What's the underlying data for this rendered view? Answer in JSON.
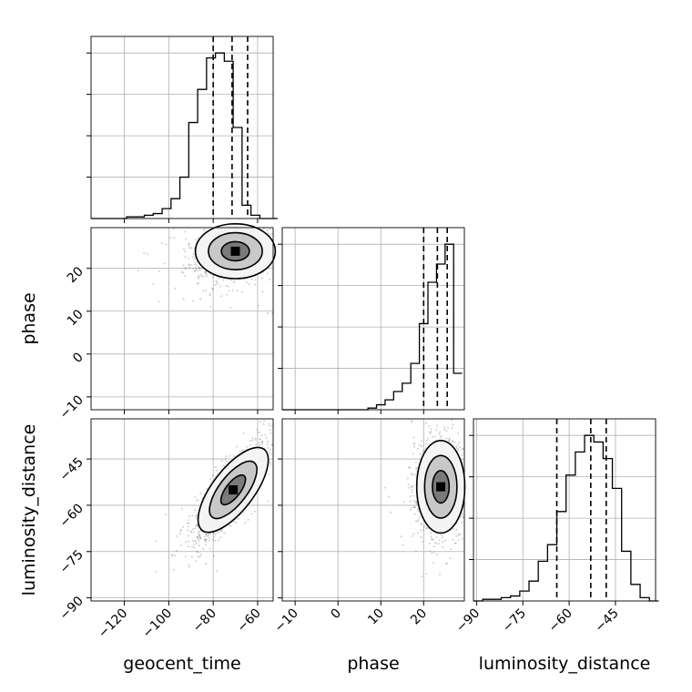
{
  "chart_data": {
    "type": "corner",
    "parameters": [
      "geocent_time",
      "phase",
      "luminosity_distance"
    ],
    "grid": true,
    "axis_ranges": {
      "geocent_time": [
        -135,
        -53
      ],
      "phase": [
        -13,
        29.5
      ],
      "luminosity_distance": [
        -91,
        -32
      ]
    },
    "ticks": {
      "geocent_time": [
        -120,
        -100,
        -80,
        -60
      ],
      "phase": [
        -10,
        0,
        10,
        20
      ],
      "luminosity_distance": [
        -90,
        -75,
        -60,
        -45
      ]
    },
    "tick_labels": {
      "geocent_time": [
        "−120",
        "−100",
        "−80",
        "−60"
      ],
      "phase": [
        "−10",
        "0",
        "10",
        "20"
      ],
      "luminosity_distance": [
        "−90",
        "−75",
        "−60",
        "−45"
      ]
    },
    "quantile_lines": {
      "geocent_time": [
        -80,
        -71.5,
        -64.5
      ],
      "phase": [
        20,
        23.2,
        25.5
      ],
      "luminosity_distance": [
        -64,
        -53,
        -48
      ]
    },
    "histograms": {
      "geocent_time": {
        "bin_edges": [
          -135,
          -131,
          -127,
          -123,
          -119,
          -115,
          -111,
          -107,
          -103,
          -99,
          -95,
          -91,
          -87,
          -83,
          -79,
          -75,
          -71,
          -67,
          -63,
          -59,
          -55,
          -51
        ],
        "counts": [
          0,
          0,
          0,
          0,
          0.01,
          0.01,
          0.02,
          0.03,
          0.06,
          0.12,
          0.25,
          0.58,
          0.78,
          0.97,
          1.0,
          0.95,
          0.55,
          0.08,
          0.02,
          0.0,
          0.0
        ]
      },
      "phase": {
        "bin_edges": [
          -13,
          -11,
          -9,
          -7,
          -5,
          -3,
          -1,
          1,
          3,
          5,
          7,
          9,
          11,
          13,
          15,
          17,
          19,
          21,
          23,
          25,
          27,
          29
        ],
        "counts": [
          0,
          0,
          0,
          0,
          0,
          0,
          0,
          0,
          0,
          0,
          0.01,
          0.03,
          0.06,
          0.11,
          0.16,
          0.28,
          0.52,
          0.77,
          0.88,
          1.0,
          0.22
        ]
      },
      "luminosity_distance": {
        "bin_edges": [
          -91,
          -88,
          -85,
          -82,
          -79,
          -76,
          -73,
          -70,
          -67,
          -64,
          -61,
          -58,
          -55,
          -52,
          -49,
          -46,
          -43,
          -40,
          -37,
          -34,
          -31
        ],
        "counts": [
          0,
          0.01,
          0.01,
          0.02,
          0.03,
          0.06,
          0.12,
          0.24,
          0.34,
          0.54,
          0.76,
          0.9,
          1.0,
          0.96,
          0.86,
          0.68,
          0.3,
          0.1,
          0.02,
          0.0
        ]
      }
    },
    "scatter_panels": [
      {
        "x": "geocent_time",
        "y": "phase",
        "center": [
          -70,
          24
        ],
        "spread": [
          9,
          3.2
        ],
        "correlation": 0.25
      },
      {
        "x": "geocent_time",
        "y": "luminosity_distance",
        "center": [
          -71,
          -55
        ],
        "spread": [
          8.5,
          8
        ],
        "correlation": 0.85
      },
      {
        "x": "phase",
        "y": "luminosity_distance",
        "center": [
          24,
          -54
        ],
        "spread": [
          2.8,
          7.5
        ],
        "correlation": 0.05
      }
    ],
    "axis_labels": {
      "x": [
        "geocent_time",
        "phase",
        "luminosity_distance"
      ],
      "y": [
        "phase",
        "luminosity_distance"
      ]
    }
  }
}
